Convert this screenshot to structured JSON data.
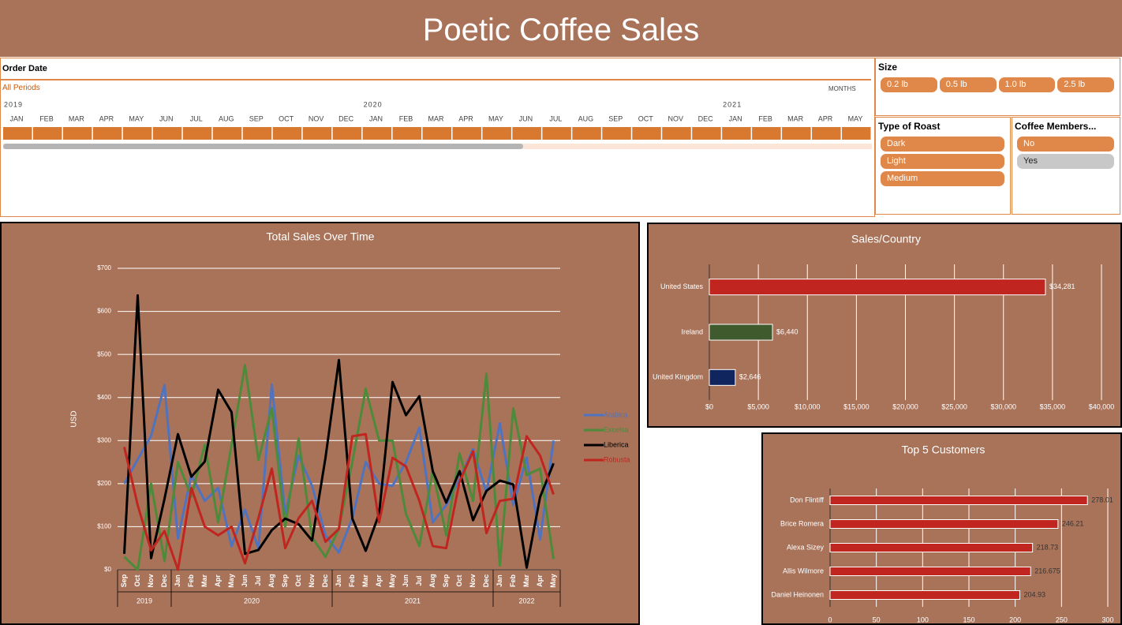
{
  "title": "Poetic Coffee Sales",
  "timeline": {
    "label": "Order Date",
    "period": "All Periods",
    "level": "MONTHS",
    "years": [
      "2019",
      "2020",
      "2021"
    ],
    "months": [
      "JAN",
      "FEB",
      "MAR",
      "APR",
      "MAY",
      "JUN",
      "JUL",
      "AUG",
      "SEP",
      "OCT",
      "NOV",
      "DEC",
      "JAN",
      "FEB",
      "MAR",
      "APR",
      "MAY",
      "JUN",
      "JUL",
      "AUG",
      "SEP",
      "OCT",
      "NOV",
      "DEC",
      "JAN",
      "FEB",
      "MAR",
      "APR",
      "MAY"
    ]
  },
  "slicers": [
    {
      "title": "Size",
      "items": [
        "0.2 lb",
        "0.5 lb",
        "1.0 lb",
        "2.5 lb"
      ],
      "selected": [
        true,
        true,
        true,
        true
      ]
    },
    {
      "title": "Type of Roast",
      "items": [
        "Dark",
        "Light",
        "Medium"
      ],
      "selected": [
        true,
        true,
        true
      ]
    },
    {
      "title": "Coffee Members...",
      "items": [
        "No",
        "Yes"
      ],
      "selected": [
        true,
        false
      ]
    }
  ],
  "chart_data": [
    {
      "type": "line",
      "title": "Total Sales Over Time",
      "y_label": "USD",
      "categories": [
        "Sep",
        "Oct",
        "Nov",
        "Dec",
        "Jan",
        "Feb",
        "Mar",
        "Apr",
        "May",
        "Jun",
        "Jul",
        "Aug",
        "Sep",
        "Oct",
        "Nov",
        "Dec",
        "Jan",
        "Feb",
        "Mar",
        "Apr",
        "May",
        "Jun",
        "Jul",
        "Aug",
        "Sep",
        "Oct",
        "Nov",
        "Dec",
        "Jan",
        "Feb",
        "Mar",
        "Apr",
        "May"
      ],
      "years": [
        "2019",
        "2020",
        "2021",
        "2022"
      ],
      "ylim": [
        0,
        700
      ],
      "yticks": [
        {
          "value": 0,
          "label": "$0"
        },
        {
          "value": 100,
          "label": "$100"
        },
        {
          "value": 200,
          "label": "$200"
        },
        {
          "value": 300,
          "label": "$300"
        },
        {
          "value": 400,
          "label": "$400"
        },
        {
          "value": 500,
          "label": "$500"
        },
        {
          "value": 600,
          "label": "$600"
        },
        {
          "value": 700,
          "label": "$700"
        }
      ],
      "grid": true,
      "legend": "right",
      "series": [
        {
          "name": "Arabica",
          "color": "#4f73be",
          "values": [
            200,
            256,
            311,
            429,
            73,
            220,
            160,
            190,
            55,
            140,
            50,
            430,
            130,
            265,
            195,
            80,
            40,
            120,
            250,
            200,
            195,
            250,
            330,
            110,
            150,
            210,
            280,
            180,
            340,
            150,
            260,
            70,
            300
          ]
        },
        {
          "name": "Excelsa",
          "color": "#4d8a3a",
          "values": [
            30,
            0,
            200,
            20,
            250,
            170,
            290,
            110,
            290,
            475,
            255,
            375,
            100,
            305,
            75,
            30,
            95,
            250,
            420,
            300,
            300,
            130,
            55,
            230,
            80,
            270,
            160,
            455,
            10,
            375,
            220,
            235,
            25
          ]
        },
        {
          "name": "Liberica",
          "color": "#000000",
          "values": [
            37,
            637,
            27,
            165,
            315,
            216,
            251,
            418,
            366,
            37,
            46,
            92,
            119,
            106,
            68,
            260,
            487,
            119,
            44,
            130,
            436,
            359,
            403,
            229,
            156,
            229,
            115,
            183,
            207,
            198,
            5,
            169,
            247
          ]
        },
        {
          "name": "Robusta",
          "color": "#c0261f",
          "values": [
            285,
            150,
            45,
            90,
            0,
            190,
            100,
            80,
            100,
            15,
            120,
            235,
            50,
            120,
            160,
            65,
            95,
            310,
            315,
            110,
            260,
            240,
            160,
            55,
            50,
            205,
            275,
            85,
            160,
            165,
            310,
            265,
            175
          ]
        }
      ]
    },
    {
      "type": "barh",
      "title": "Sales/Country",
      "categories": [
        "United States",
        "Ireland",
        "United Kingdom"
      ],
      "values": [
        34281,
        6440,
        2646
      ],
      "value_labels": [
        "$34,281",
        "$6,440",
        "$2,646"
      ],
      "colors": [
        "#c0261f",
        "#3f5a2c",
        "#10245e"
      ],
      "xlim": [
        0,
        40000
      ],
      "xticks": [
        {
          "value": 0,
          "label": "$0"
        },
        {
          "value": 5000,
          "label": "$5,000"
        },
        {
          "value": 10000,
          "label": "$10,000"
        },
        {
          "value": 15000,
          "label": "$15,000"
        },
        {
          "value": 20000,
          "label": "$20,000"
        },
        {
          "value": 25000,
          "label": "$25,000"
        },
        {
          "value": 30000,
          "label": "$30,000"
        },
        {
          "value": 35000,
          "label": "$35,000"
        },
        {
          "value": 40000,
          "label": "$40,000"
        }
      ],
      "grid": true
    },
    {
      "type": "barh",
      "title": "Top 5 Customers",
      "categories": [
        "Don Flintiff",
        "Brice Romera",
        "Alexa Sizey",
        "Allis Wilmore",
        "Daniel Heinonen"
      ],
      "values": [
        278.01,
        246.21,
        218.73,
        216.675,
        204.93
      ],
      "color": "#c0261f",
      "xlim": [
        0,
        300
      ],
      "xticks": [
        0,
        50,
        100,
        150,
        200,
        250,
        300
      ],
      "grid": true
    }
  ]
}
